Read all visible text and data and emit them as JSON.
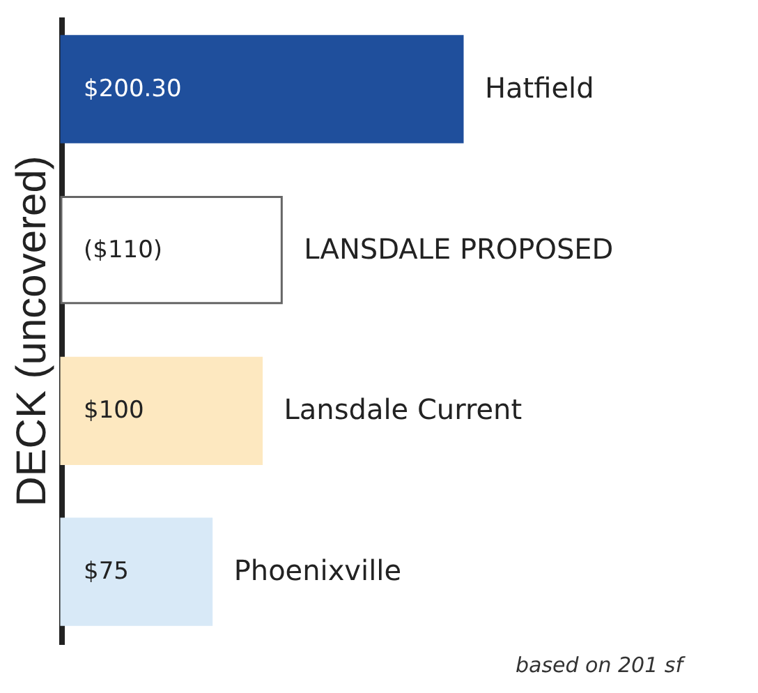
{
  "chart_data": {
    "type": "bar",
    "orientation": "horizontal",
    "ylabel": "DECK (uncovered)",
    "categories": [
      "Hatfield",
      "LANSDALE PROPOSED",
      "Lansdale Current",
      "Phoenixville"
    ],
    "values": [
      200.3,
      110,
      100,
      75
    ],
    "colors": [
      "#1f4f9c",
      "#ffffff",
      "#fde8c0",
      "#d8e9f7"
    ],
    "value_labels": [
      "$200.30",
      "($110)",
      "$100",
      "$75"
    ],
    "annotations": [
      "based on 201 sf"
    ],
    "grid": false
  }
}
